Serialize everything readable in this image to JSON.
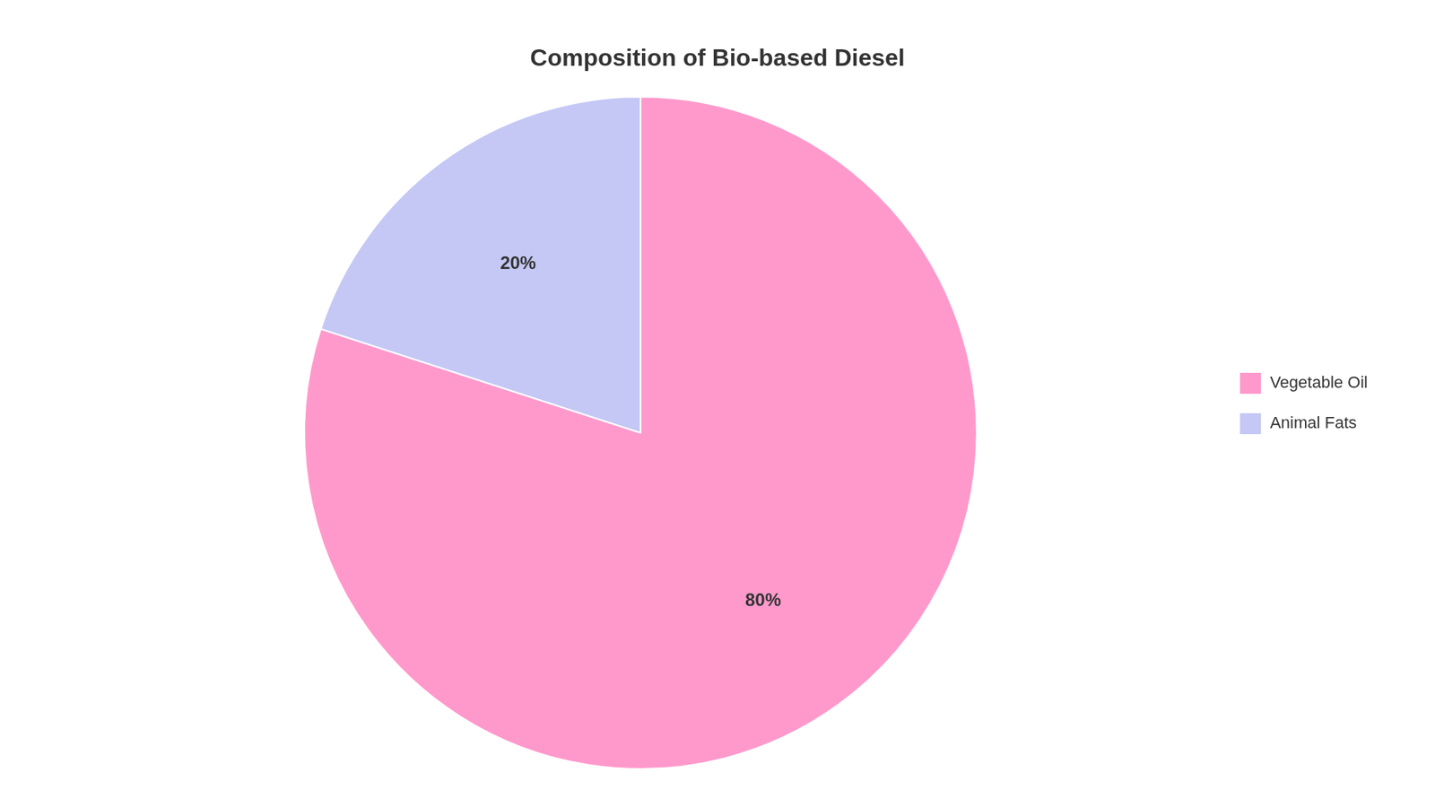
{
  "chart_data": {
    "type": "pie",
    "title": "Composition of Bio-based Diesel",
    "categories": [
      "Vegetable Oil",
      "Animal Fats"
    ],
    "values": [
      80,
      20
    ],
    "value_labels": [
      "80%",
      "20%"
    ],
    "colors": [
      "#FF99CC",
      "#C5C8F5"
    ],
    "data_labels": true,
    "legend": "right"
  }
}
